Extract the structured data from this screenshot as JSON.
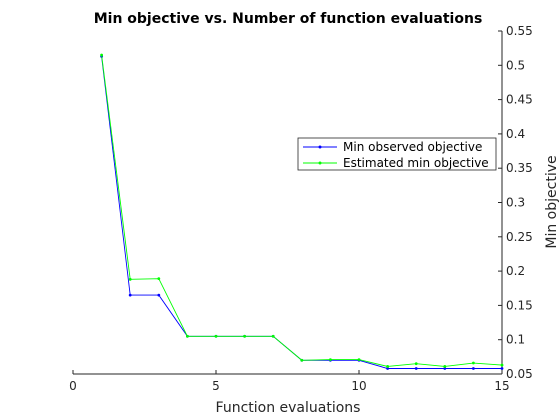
{
  "chart_data": {
    "type": "line",
    "title": "Min objective vs. Number of function evaluations",
    "xlabel": "Function evaluations",
    "ylabel": "Min objective",
    "xlim": [
      0,
      15
    ],
    "ylim": [
      0.05,
      0.55
    ],
    "x_ticks": [
      "0",
      "5",
      "10",
      "15"
    ],
    "y_ticks": [
      "0.05",
      "0.1",
      "0.15",
      "0.2",
      "0.25",
      "0.3",
      "0.35",
      "0.4",
      "0.45",
      "0.5",
      "0.55"
    ],
    "y_axis_side": "right",
    "grid": false,
    "legend_position": "center-right",
    "x": [
      1,
      2,
      3,
      4,
      5,
      6,
      7,
      8,
      9,
      10,
      11,
      12,
      13,
      14,
      15
    ],
    "series": [
      {
        "name": "Min observed objective",
        "color": "#0000ff",
        "marker": "point",
        "values": [
          0.513,
          0.165,
          0.165,
          0.105,
          0.105,
          0.105,
          0.105,
          0.07,
          0.07,
          0.07,
          0.058,
          0.058,
          0.058,
          0.058,
          0.058
        ]
      },
      {
        "name": "Estimated min objective",
        "color": "#00ff00",
        "marker": "point",
        "values": [
          0.515,
          0.188,
          0.189,
          0.105,
          0.105,
          0.105,
          0.105,
          0.07,
          0.071,
          0.071,
          0.061,
          0.065,
          0.061,
          0.066,
          0.063
        ]
      }
    ]
  }
}
